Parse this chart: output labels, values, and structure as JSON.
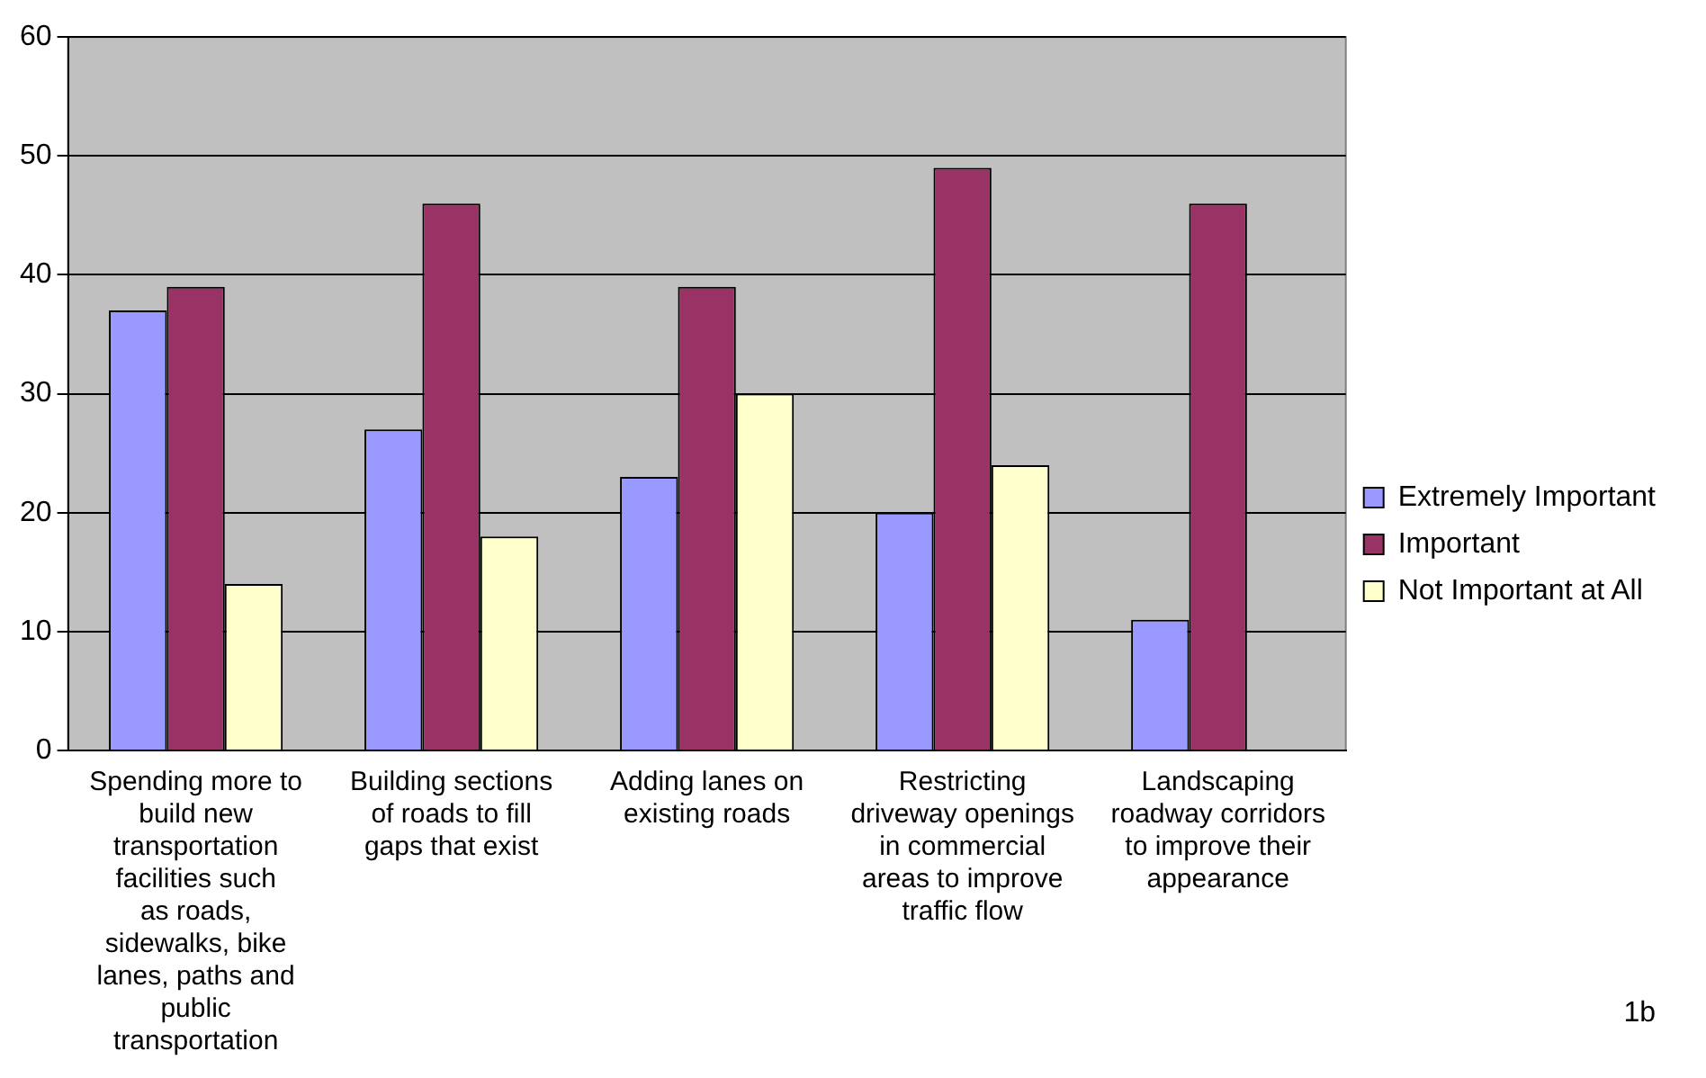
{
  "chart_data": {
    "type": "bar",
    "categories": [
      "Spending more to build new transportation facilities such as roads, sidewalks, bike lanes, paths and public transportation",
      "Building sections of roads to fill gaps that exist",
      "Adding lanes on existing roads",
      "Restricting driveway openings in commercial areas to improve traffic flow",
      "Landscaping roadway corridors to improve their appearance"
    ],
    "series": [
      {
        "name": "Extremely Important",
        "color": "#9999ff",
        "values": [
          37,
          27,
          23,
          20,
          11
        ]
      },
      {
        "name": "Important",
        "color": "#993366",
        "values": [
          39,
          46,
          39,
          49,
          46
        ]
      },
      {
        "name": "Not Important at All",
        "color": "#ffffcc",
        "values": [
          14,
          18,
          30,
          24,
          null
        ]
      }
    ],
    "ylim": [
      0,
      60
    ],
    "yticks": [
      0,
      10,
      20,
      30,
      40,
      50,
      60
    ],
    "grid": "y",
    "legend": "right",
    "annotations": [
      "1b"
    ]
  }
}
